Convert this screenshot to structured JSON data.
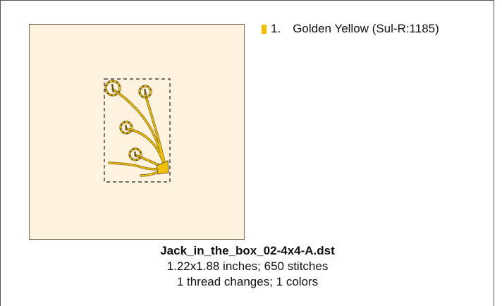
{
  "design": {
    "filename": "Jack_in_the_box_02-4x4-A.dst",
    "dimensions": "1.22x1.88 inches; 650 stitches",
    "changes": "1 thread changes; 1 colors",
    "hoop_color": "#fff2de"
  },
  "threads": [
    {
      "number": "1.",
      "name": "Golden Yellow (Sul-R:1185)",
      "color": "#f0c000"
    }
  ],
  "stitch_colors": {
    "main": "#e8b400",
    "shadow": "#5a4a20"
  }
}
